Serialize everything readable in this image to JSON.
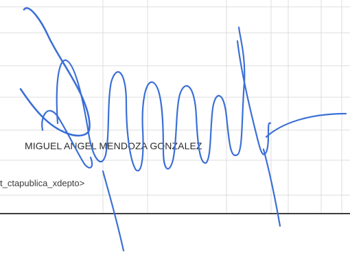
{
  "document": {
    "signer_name": "MIGUEL ANGEL MENDOZA GONZALEZ",
    "footer_tag": "t_ctapublica_xdepto>"
  },
  "colors": {
    "ink": "#3b6fd6",
    "grid": "#d8d8d8",
    "rule": "#3c3c3c",
    "text": "#2a2a2a"
  },
  "icons": {
    "signature": "handwritten-signature"
  }
}
